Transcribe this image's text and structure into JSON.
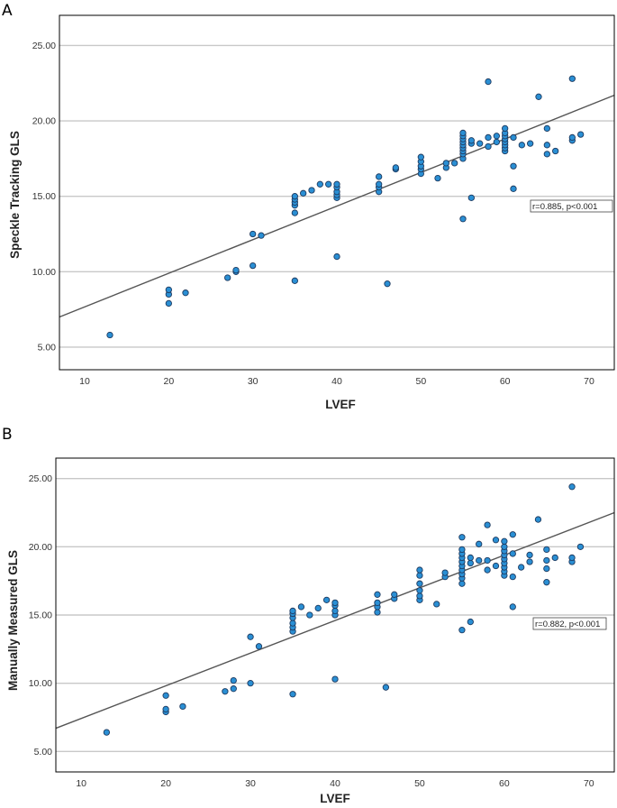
{
  "chart_data": [
    {
      "type": "scatter",
      "panel": "A",
      "xlabel": "LVEF",
      "ylabel": "Speckle Tracking GLS",
      "xlim": [
        7,
        73
      ],
      "ylim": [
        3.5,
        27
      ],
      "x_ticks": [
        "10",
        "20",
        "30",
        "40",
        "50",
        "60",
        "70"
      ],
      "y_ticks": [
        "5.00",
        "10.00",
        "15.00",
        "20.00",
        "25.00"
      ],
      "grid_y": true,
      "annotation": "r=0.885, p<0.001",
      "regression": {
        "x1": 7,
        "y1": 7.0,
        "x2": 73,
        "y2": 21.7
      },
      "points": [
        [
          13,
          5.8
        ],
        [
          20,
          7.9
        ],
        [
          20,
          8.5
        ],
        [
          20,
          8.8
        ],
        [
          22,
          8.6
        ],
        [
          27,
          9.6
        ],
        [
          28,
          10.0
        ],
        [
          28,
          10.1
        ],
        [
          30,
          10.4
        ],
        [
          30,
          12.5
        ],
        [
          31,
          12.4
        ],
        [
          35,
          9.4
        ],
        [
          35,
          13.9
        ],
        [
          35,
          14.4
        ],
        [
          35,
          14.6
        ],
        [
          35,
          14.8
        ],
        [
          35,
          15.0
        ],
        [
          36,
          15.2
        ],
        [
          37,
          15.4
        ],
        [
          38,
          15.8
        ],
        [
          39,
          15.8
        ],
        [
          40,
          14.9
        ],
        [
          40,
          15.1
        ],
        [
          40,
          15.3
        ],
        [
          40,
          15.6
        ],
        [
          40,
          15.8
        ],
        [
          40,
          11.0
        ],
        [
          45,
          15.3
        ],
        [
          45,
          15.6
        ],
        [
          45,
          15.8
        ],
        [
          45,
          16.3
        ],
        [
          46,
          9.2
        ],
        [
          47,
          16.8
        ],
        [
          47,
          16.9
        ],
        [
          50,
          16.5
        ],
        [
          50,
          16.8
        ],
        [
          50,
          17.0
        ],
        [
          50,
          17.3
        ],
        [
          50,
          17.6
        ],
        [
          52,
          16.2
        ],
        [
          53,
          16.9
        ],
        [
          53,
          17.2
        ],
        [
          54,
          17.2
        ],
        [
          55,
          13.5
        ],
        [
          55,
          17.5
        ],
        [
          55,
          17.8
        ],
        [
          55,
          18.0
        ],
        [
          55,
          18.2
        ],
        [
          55,
          18.4
        ],
        [
          55,
          18.6
        ],
        [
          55,
          18.8
        ],
        [
          55,
          19.0
        ],
        [
          55,
          19.2
        ],
        [
          56,
          14.9
        ],
        [
          56,
          18.5
        ],
        [
          56,
          18.7
        ],
        [
          57,
          18.5
        ],
        [
          58,
          22.6
        ],
        [
          58,
          18.3
        ],
        [
          58,
          18.9
        ],
        [
          59,
          18.6
        ],
        [
          59,
          19.0
        ],
        [
          60,
          18.0
        ],
        [
          60,
          18.2
        ],
        [
          60,
          18.4
        ],
        [
          60,
          18.6
        ],
        [
          60,
          18.8
        ],
        [
          60,
          19.0
        ],
        [
          60,
          19.2
        ],
        [
          60,
          19.5
        ],
        [
          61,
          15.5
        ],
        [
          61,
          17.0
        ],
        [
          61,
          18.9
        ],
        [
          62,
          18.4
        ],
        [
          63,
          18.5
        ],
        [
          64,
          21.6
        ],
        [
          65,
          17.8
        ],
        [
          65,
          18.4
        ],
        [
          65,
          19.5
        ],
        [
          66,
          18.0
        ],
        [
          68,
          22.8
        ],
        [
          68,
          18.7
        ],
        [
          68,
          18.9
        ],
        [
          69,
          19.1
        ]
      ]
    },
    {
      "type": "scatter",
      "panel": "B",
      "xlabel": "LVEF",
      "ylabel": "Manually Measured GLS",
      "xlim": [
        7,
        73
      ],
      "ylim": [
        3.5,
        26.5
      ],
      "x_ticks": [
        "10",
        "20",
        "30",
        "40",
        "50",
        "60",
        "70"
      ],
      "y_ticks": [
        "5.00",
        "10.00",
        "15.00",
        "20.00",
        "25.00"
      ],
      "grid_y": true,
      "annotation": "r=0.882, p<0.001",
      "regression": {
        "x1": 7,
        "y1": 6.7,
        "x2": 73,
        "y2": 22.5
      },
      "points": [
        [
          13,
          6.4
        ],
        [
          20,
          7.9
        ],
        [
          20,
          8.1
        ],
        [
          20,
          9.1
        ],
        [
          22,
          8.3
        ],
        [
          27,
          9.4
        ],
        [
          28,
          9.6
        ],
        [
          28,
          10.2
        ],
        [
          30,
          10.0
        ],
        [
          30,
          13.4
        ],
        [
          31,
          12.7
        ],
        [
          35,
          9.2
        ],
        [
          35,
          13.8
        ],
        [
          35,
          14.1
        ],
        [
          35,
          14.4
        ],
        [
          35,
          14.8
        ],
        [
          35,
          15.1
        ],
        [
          35,
          15.3
        ],
        [
          36,
          15.6
        ],
        [
          37,
          15.0
        ],
        [
          38,
          15.5
        ],
        [
          39,
          16.1
        ],
        [
          40,
          15.0
        ],
        [
          40,
          15.3
        ],
        [
          40,
          15.7
        ],
        [
          40,
          15.9
        ],
        [
          40,
          10.3
        ],
        [
          45,
          15.2
        ],
        [
          45,
          15.6
        ],
        [
          45,
          15.9
        ],
        [
          45,
          16.5
        ],
        [
          46,
          9.7
        ],
        [
          47,
          16.2
        ],
        [
          47,
          16.5
        ],
        [
          50,
          16.1
        ],
        [
          50,
          16.4
        ],
        [
          50,
          16.8
        ],
        [
          50,
          17.3
        ],
        [
          50,
          17.9
        ],
        [
          50,
          18.3
        ],
        [
          52,
          15.8
        ],
        [
          53,
          17.8
        ],
        [
          53,
          18.1
        ],
        [
          55,
          13.9
        ],
        [
          55,
          17.3
        ],
        [
          55,
          17.7
        ],
        [
          55,
          18.0
        ],
        [
          55,
          18.3
        ],
        [
          55,
          18.6
        ],
        [
          55,
          18.9
        ],
        [
          55,
          19.2
        ],
        [
          55,
          19.5
        ],
        [
          55,
          19.8
        ],
        [
          55,
          20.7
        ],
        [
          56,
          14.5
        ],
        [
          56,
          18.8
        ],
        [
          56,
          19.2
        ],
        [
          57,
          19.0
        ],
        [
          57,
          20.2
        ],
        [
          58,
          21.6
        ],
        [
          58,
          18.3
        ],
        [
          58,
          19.0
        ],
        [
          59,
          18.6
        ],
        [
          59,
          20.5
        ],
        [
          60,
          17.9
        ],
        [
          60,
          18.2
        ],
        [
          60,
          18.5
        ],
        [
          60,
          18.8
        ],
        [
          60,
          19.1
        ],
        [
          60,
          19.4
        ],
        [
          60,
          19.7
        ],
        [
          60,
          20.0
        ],
        [
          60,
          20.4
        ],
        [
          61,
          15.6
        ],
        [
          61,
          17.8
        ],
        [
          61,
          19.5
        ],
        [
          61,
          20.9
        ],
        [
          62,
          18.5
        ],
        [
          63,
          18.9
        ],
        [
          63,
          19.4
        ],
        [
          64,
          22.0
        ],
        [
          65,
          17.4
        ],
        [
          65,
          18.4
        ],
        [
          65,
          19.0
        ],
        [
          65,
          19.8
        ],
        [
          66,
          19.2
        ],
        [
          68,
          24.4
        ],
        [
          68,
          18.9
        ],
        [
          68,
          19.2
        ],
        [
          69,
          20.0
        ]
      ]
    }
  ]
}
